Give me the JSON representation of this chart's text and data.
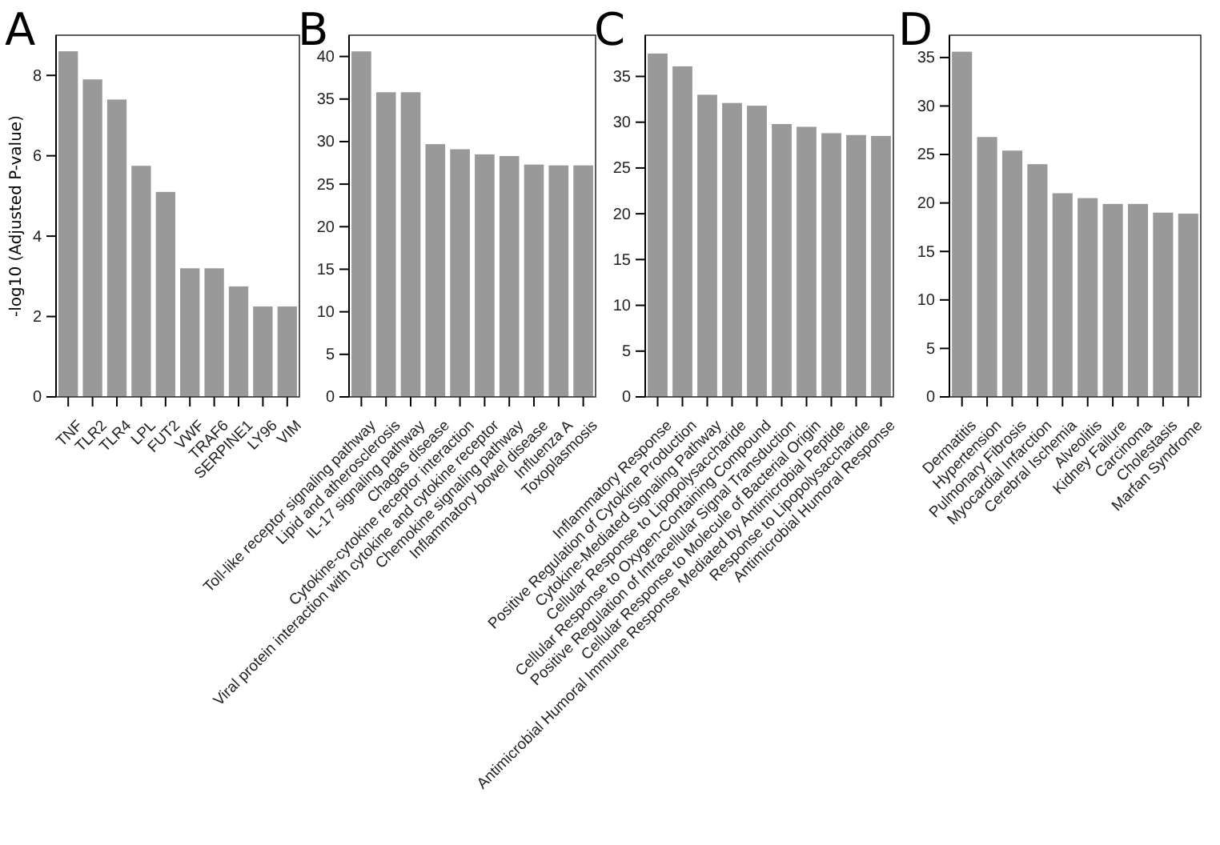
{
  "chart_data": [
    {
      "type": "bar",
      "title": "A",
      "ylabel": "-log10 (Adjusted P-value)",
      "categories": [
        "TNF",
        "TLR2",
        "TLR4",
        "LPL",
        "FUT2",
        "VWF",
        "TRAF6",
        "SERPINE1",
        "LY96",
        "VIM"
      ],
      "values": [
        8.6,
        7.9,
        7.4,
        5.75,
        5.1,
        3.2,
        3.2,
        2.75,
        2.25,
        2.25
      ],
      "color": "#999999",
      "ylim": [
        0,
        9.0
      ],
      "yticks": [
        0,
        2,
        4,
        6,
        8
      ]
    },
    {
      "type": "bar",
      "title": "B",
      "categories": [
        "Toll-like receptor signaling pathway",
        "Lipid and atherosclerosis",
        "IL-17 signaling pathway",
        "Chagas disease",
        "Cytokine-cytokine receptor interaction",
        "Viral protein interaction with cytokine and cytokine receptor",
        "Chemokine signaling pathway",
        "Inflammatory bowel disease",
        "Influenza A",
        "Toxoplasmosis"
      ],
      "values": [
        40.6,
        35.8,
        35.8,
        29.7,
        29.1,
        28.5,
        28.3,
        27.3,
        27.2,
        27.2
      ],
      "color": "#999999",
      "ylim": [
        0,
        42.5
      ],
      "yticks": [
        0,
        5,
        10,
        15,
        20,
        25,
        30,
        35,
        40
      ]
    },
    {
      "type": "bar",
      "title": "C",
      "categories": [
        "Inflammatory Response",
        "Positive Regulation of Cytokine Production",
        "Cytokine-Mediated Signaling Pathway",
        "Cellular Response to Lipopolysaccharide",
        "Cellular Response to Oxygen-Containing Compound",
        "Positive Regulation of Intracellular Signal Transduction",
        "Cellular Response to Molecule of Bacterial Origin",
        "Antimicrobial Humoral Immune Response Mediated by Antimicrobial Peptide",
        "Response to Lipopolysaccharide",
        "Antimicrobial Humoral Response"
      ],
      "values": [
        37.5,
        36.1,
        33.0,
        32.1,
        31.8,
        29.8,
        29.5,
        28.8,
        28.6,
        28.5
      ],
      "color": "#999999",
      "ylim": [
        0,
        39.5
      ],
      "yticks": [
        0,
        5,
        10,
        15,
        20,
        25,
        30,
        35
      ]
    },
    {
      "type": "bar",
      "title": "D",
      "categories": [
        "Dermatitis",
        "Hypertension",
        "Pulmonary Fibrosis",
        "Myocardial Infarction",
        "Cerebral Ischemia",
        "Alveolitis",
        "Kidney Failure",
        "Carcinoma",
        "Cholestasis",
        "Marfan Syndrome"
      ],
      "values": [
        35.6,
        26.8,
        25.4,
        24.0,
        21.0,
        20.5,
        19.9,
        19.9,
        19.0,
        18.9
      ],
      "color": "#999999",
      "ylim": [
        0,
        37.3
      ],
      "yticks": [
        0,
        5,
        10,
        15,
        20,
        25,
        30,
        35
      ]
    }
  ]
}
